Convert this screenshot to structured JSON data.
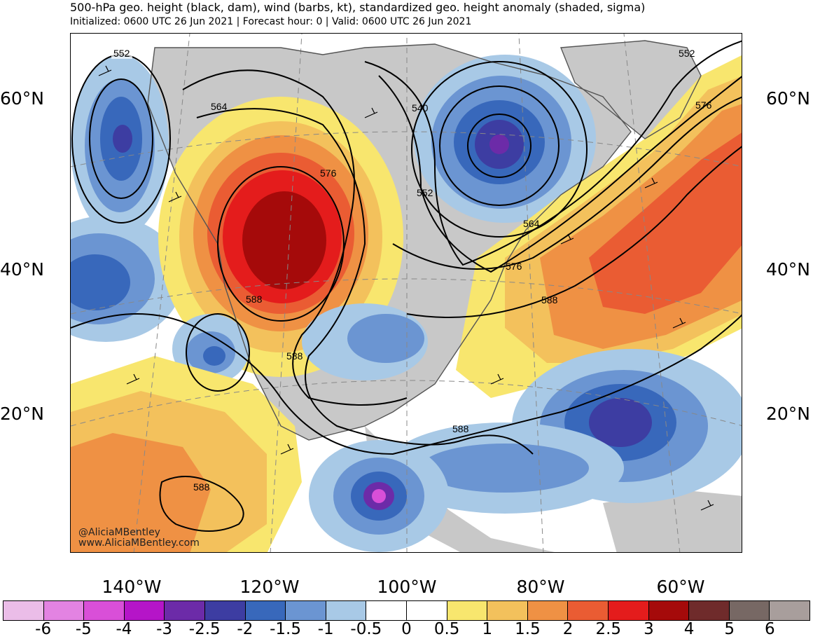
{
  "header": {
    "title": "500-hPa geo. height (black, dam), wind (barbs, kt), standardized geo. height anomaly (shaded, sigma)",
    "subtitle": "Initialized: 0600 UTC 26 Jun 2021 | Forecast hour: 0 | Valid: 0600 UTC 26 Jun 2021"
  },
  "axes": {
    "lat_labels_left": [
      "60°N",
      "40°N",
      "20°N"
    ],
    "lat_labels_right": [
      "60°N",
      "40°N",
      "20°N"
    ],
    "lon_labels": [
      "140°W",
      "120°W",
      "100°W",
      "80°W",
      "60°W"
    ]
  },
  "contour_labels": [
    "552",
    "564",
    "576",
    "588",
    "540",
    "552",
    "564",
    "576",
    "588",
    "588",
    "588",
    "588",
    "552",
    "576"
  ],
  "credits": {
    "handle": "@AliciaMBentley",
    "website": "www.AliciaMBentley.com"
  },
  "colorbar": {
    "colors": [
      "#ebbde8",
      "#e383e2",
      "#d94fd8",
      "#b515c8",
      "#6c2ba8",
      "#3d3da2",
      "#3868bb",
      "#6b95d2",
      "#a8c9e6",
      "#ffffff",
      "#ffffff",
      "#f8e66e",
      "#f3c15c",
      "#ef9144",
      "#ea5c33",
      "#e41c1c",
      "#a50a0a",
      "#6f2b2b",
      "#776864",
      "#a89e9c"
    ],
    "labels": [
      "-6",
      "-5",
      "-4",
      "-3",
      "-2.5",
      "-2",
      "-1.5",
      "-1",
      "-0.5",
      "0",
      "0.5",
      "1",
      "1.5",
      "2",
      "2.5",
      "3",
      "4",
      "5",
      "6"
    ]
  },
  "colors": {
    "land": "#c8c8c8",
    "contour": "#000000",
    "coast": "#555555"
  }
}
